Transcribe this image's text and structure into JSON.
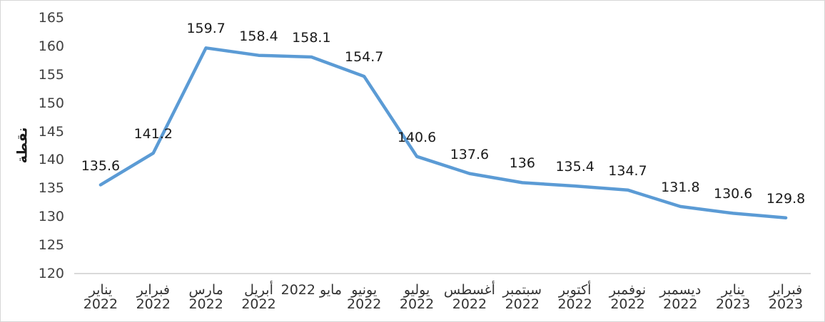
{
  "chart_data": {
    "type": "line",
    "title": "",
    "ylabel": "نقطة",
    "xlabel": "",
    "categories": [
      {
        "month": "يناير",
        "year": "2022"
      },
      {
        "month": "فبراير",
        "year": "2022"
      },
      {
        "month": "مارس",
        "year": "2022"
      },
      {
        "month": "أبريل",
        "year": "2022"
      },
      {
        "month": "مايو",
        "year": "2022",
        "single_line": true
      },
      {
        "month": "يونيو",
        "year": "2022"
      },
      {
        "month": "يوليو",
        "year": "2022"
      },
      {
        "month": "أغسطس",
        "year": "2022"
      },
      {
        "month": "سبتمبر",
        "year": "2022"
      },
      {
        "month": "أكتوبر",
        "year": "2022"
      },
      {
        "month": "نوفمبر",
        "year": "2022"
      },
      {
        "month": "ديسمبر",
        "year": "2022"
      },
      {
        "month": "يناير",
        "year": "2023"
      },
      {
        "month": "فبراير",
        "year": "2023"
      }
    ],
    "series": [
      {
        "values": [
          135.6,
          141.2,
          159.7,
          158.4,
          158.1,
          154.7,
          140.6,
          137.6,
          136,
          135.4,
          134.7,
          131.8,
          130.6,
          129.8
        ],
        "labels": [
          "135.6",
          "141.2",
          "159.7",
          "158.4",
          "158.1",
          "154.7",
          "140.6",
          "137.6",
          "136",
          "135.4",
          "134.7",
          "131.8",
          "130.6",
          "129.8"
        ],
        "color": "#5B9BD5"
      }
    ],
    "ylim": [
      120,
      165
    ],
    "ytick_step": 5,
    "yticks": [
      165,
      160,
      155,
      150,
      145,
      140,
      135,
      130,
      125,
      120
    ],
    "grid": "off",
    "legend": "none",
    "axis_line_color": "#D9D9D9",
    "tick_label_color": "#404040",
    "data_label_color": "#1a1a1a"
  }
}
